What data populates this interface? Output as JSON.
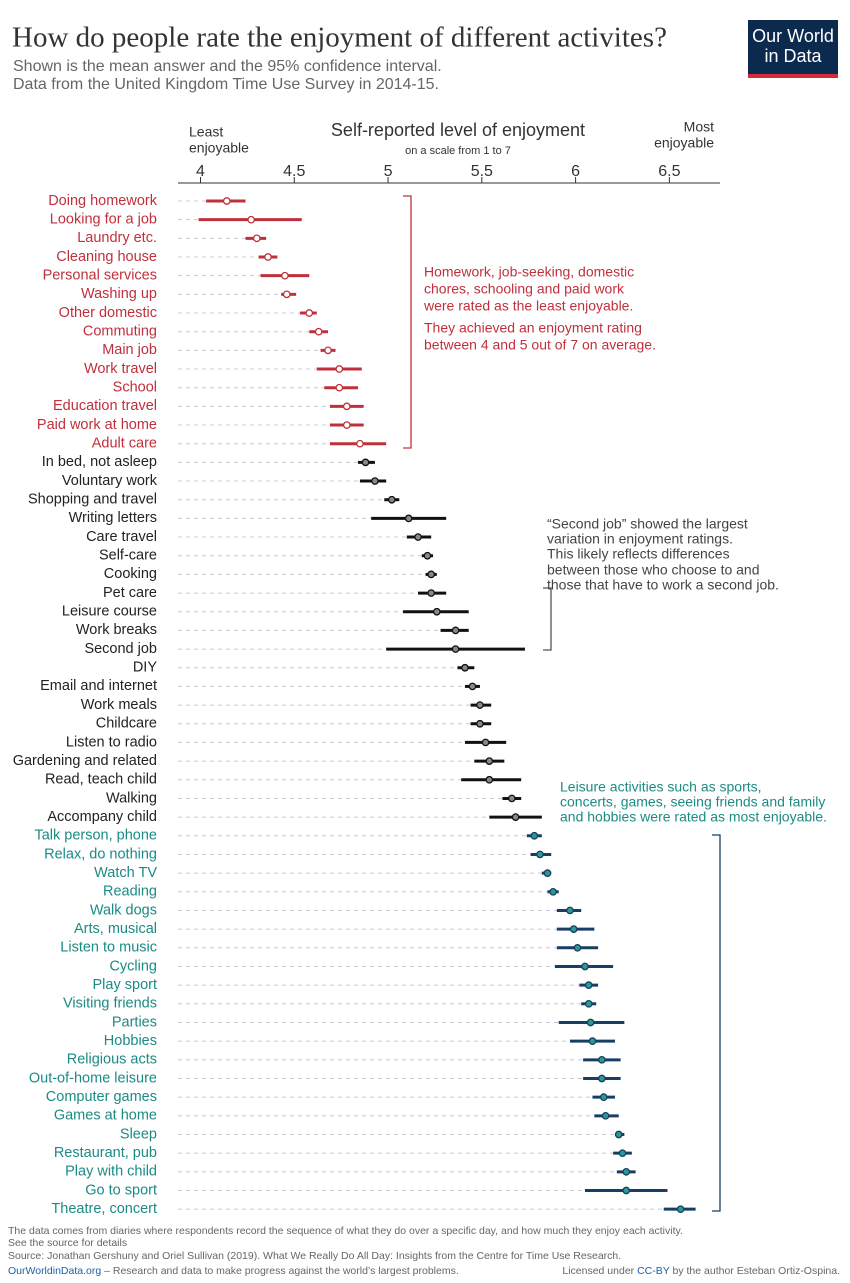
{
  "chart_data": {
    "type": "dotplot",
    "title": "How do people rate the enjoyment of different activites?",
    "subtitle": [
      "Shown is the mean answer and the 95% confidence interval.",
      "Data from the United Kingdom Time Use Survey in 2014-15."
    ],
    "logo": [
      "Our World",
      "in Data"
    ],
    "x_label": "Self-reported level of enjoyment",
    "x_sublabel": "on a scale from 1 to 7",
    "x_left_note": [
      "Least",
      "enjoyable"
    ],
    "x_right_note": [
      "Most",
      "enjoyable"
    ],
    "xlim": [
      3.88,
      6.77
    ],
    "xticks": [
      4,
      4.5,
      5,
      5.5,
      6,
      6.5
    ],
    "groups": [
      {
        "label_color": "#c0303c",
        "dot_color": "#ffffff",
        "bar_color": "#c0303c",
        "categories": [
          "Doing homework",
          "Looking for a job",
          "Laundry etc.",
          "Cleaning house",
          "Personal services",
          "Washing up",
          "Other domestic",
          "Commuting",
          "Main job",
          "Work travel",
          "School",
          "Education travel",
          "Paid work at home",
          "Adult care"
        ],
        "values": [
          4.14,
          4.27,
          4.3,
          4.36,
          4.45,
          4.46,
          4.58,
          4.63,
          4.68,
          4.74,
          4.74,
          4.78,
          4.78,
          4.85
        ],
        "low": [
          4.03,
          3.99,
          4.24,
          4.31,
          4.32,
          4.43,
          4.53,
          4.58,
          4.64,
          4.62,
          4.66,
          4.69,
          4.69,
          4.69
        ],
        "high": [
          4.24,
          4.54,
          4.35,
          4.41,
          4.58,
          4.51,
          4.62,
          4.68,
          4.72,
          4.86,
          4.84,
          4.87,
          4.87,
          4.99
        ]
      },
      {
        "label_color": "#222222",
        "dot_color": "#888888",
        "bar_color": "#111111",
        "categories": [
          "In bed, not asleep",
          "Voluntary work",
          "Shopping and travel",
          "Writing letters",
          "Care travel",
          "Self-care",
          "Cooking",
          "Pet care",
          "Leisure course",
          "Work breaks",
          "Second job",
          "DIY",
          "Email and internet",
          "Work meals",
          "Childcare",
          "Listen to radio",
          "Gardening and related",
          "Read, teach child",
          "Walking",
          "Accompany child"
        ],
        "values": [
          4.88,
          4.93,
          5.02,
          5.11,
          5.16,
          5.21,
          5.23,
          5.23,
          5.26,
          5.36,
          5.36,
          5.41,
          5.45,
          5.49,
          5.49,
          5.52,
          5.54,
          5.54,
          5.66,
          5.68
        ],
        "low": [
          4.84,
          4.85,
          4.98,
          4.91,
          5.1,
          5.18,
          5.2,
          5.16,
          5.08,
          5.28,
          4.99,
          5.37,
          5.41,
          5.44,
          5.44,
          5.41,
          5.46,
          5.39,
          5.61,
          5.54
        ],
        "high": [
          4.93,
          4.99,
          5.06,
          5.31,
          5.23,
          5.24,
          5.26,
          5.31,
          5.43,
          5.43,
          5.73,
          5.46,
          5.49,
          5.55,
          5.55,
          5.63,
          5.62,
          5.71,
          5.71,
          5.82
        ]
      },
      {
        "label_color": "#1b8b84",
        "dot_color": "#2a9a92",
        "bar_color": "#173f63",
        "categories": [
          "Talk person, phone",
          "Relax, do nothing",
          "Watch TV",
          "Reading",
          "Walk dogs",
          "Arts, musical",
          "Listen to music",
          "Cycling",
          "Play sport",
          "Visiting friends",
          "Parties",
          "Hobbies",
          "Religious acts",
          "Out-of-home leisure",
          "Computer games",
          "Games at home",
          "Sleep",
          "Restaurant, pub",
          "Play with child",
          "Go to sport",
          "Theatre, concert"
        ],
        "values": [
          5.78,
          5.81,
          5.85,
          5.88,
          5.97,
          5.99,
          6.01,
          6.05,
          6.07,
          6.07,
          6.08,
          6.09,
          6.14,
          6.14,
          6.15,
          6.16,
          6.23,
          6.25,
          6.27,
          6.27,
          6.56
        ],
        "low": [
          5.74,
          5.76,
          5.82,
          5.85,
          5.9,
          5.9,
          5.9,
          5.89,
          6.02,
          6.03,
          5.91,
          5.97,
          6.04,
          6.04,
          6.09,
          6.1,
          6.21,
          6.2,
          6.22,
          6.05,
          6.47
        ],
        "high": [
          5.82,
          5.87,
          5.87,
          5.91,
          6.03,
          6.1,
          6.12,
          6.2,
          6.12,
          6.11,
          6.26,
          6.21,
          6.24,
          6.24,
          6.21,
          6.23,
          6.26,
          6.3,
          6.32,
          6.49,
          6.64
        ]
      }
    ],
    "annotations": [
      {
        "color": "#c0303c",
        "lines": [
          "Homework, job-seeking, domestic",
          "chores, schooling and paid work",
          "were rated as the least enjoyable.",
          "They achieved an enjoyment rating",
          "between 4 and 5 out of 7 on average."
        ]
      },
      {
        "color": "#444444",
        "lines": [
          "“Second job” showed the largest",
          " variation in enjoyment ratings.",
          "This likely reflects differences",
          "between those who choose to and",
          "those that have to work a second job."
        ]
      },
      {
        "color": "#1b8b84",
        "lines": [
          "Leisure activities such as sports,",
          "concerts, games, seeing friends and family",
          "and hobbies were rated as most enjoyable."
        ]
      }
    ],
    "footer": {
      "note": [
        "The data comes from diaries where respondents record the sequence of what they do over a specific day, and how much they enjoy each activity.",
        "See the source for details"
      ],
      "source": "Source: Jonathan Gershuny and Oriel Sullivan (2019). What We Really Do All Day: Insights from the Centre for Time Use Research.",
      "site": "OurWorldinData.org",
      "tagline": " – Research and data to make progress against the world’s largest problems.",
      "license": [
        "Licensed under ",
        "CC-BY",
        " by the author Esteban Ortiz-Ospina."
      ]
    }
  }
}
